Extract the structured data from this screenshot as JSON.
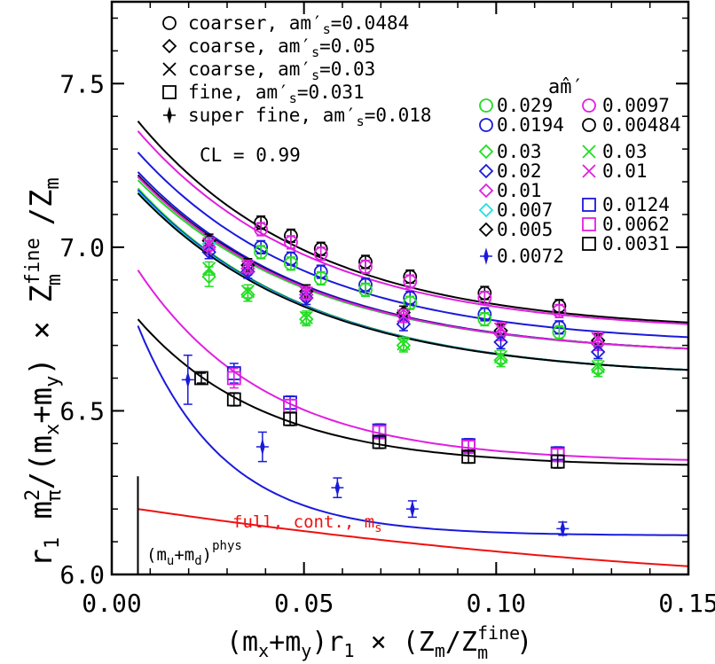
{
  "chart_data": {
    "type": "scatter",
    "x_axis": {
      "label_main": "(m",
      "label_x_sub": "x",
      "label_plus": "+m",
      "label_y_sub": "y",
      "label_r1": ")r",
      "label_r1_sub": "1",
      "label_times": " × (Z",
      "label_m_sub": "m",
      "label_slash": "/Z",
      "label_m_sub2": "m",
      "label_fine_sup": "fine",
      "label_close": ")",
      "range": [
        0.0,
        0.15
      ],
      "ticks": [
        0.0,
        0.05,
        0.1,
        0.15
      ],
      "tick_labels": [
        "0.00",
        "0.05",
        "0.10",
        "0.15"
      ]
    },
    "y_axis": {
      "label_r1": "r",
      "label_r1_sub": "1",
      "label_m": " m",
      "label_pi_sup": "2",
      "label_pi_sub": "π",
      "label_div": "/(m",
      "label_x_sub": "x",
      "label_plus": "+m",
      "label_y_sub": "y",
      "label_times": ") × Z",
      "label_fine_sup": "fine",
      "label_m_sub": "m",
      "label_slash": " /Z",
      "label_m_sub2": "m",
      "range": [
        6.0,
        7.75
      ],
      "ticks": [
        6.0,
        6.5,
        7.0,
        7.5
      ],
      "tick_labels": [
        "6.0",
        "6.5",
        "7.0",
        "7.5"
      ]
    },
    "legend_ensembles": [
      {
        "marker": "circle",
        "text": "coarser, am′",
        "sub": "s",
        "value": "=0.0484"
      },
      {
        "marker": "diamond",
        "text": "coarse, am′",
        "sub": "s",
        "value": "=0.05"
      },
      {
        "marker": "cross",
        "text": "coarse, am′",
        "sub": "s",
        "value": "=0.03"
      },
      {
        "marker": "square",
        "text": "fine, am′",
        "sub": "s",
        "value": "=0.031"
      },
      {
        "marker": "fancyplus",
        "text": "super fine, am′",
        "sub": "s",
        "value": "=0.018"
      }
    ],
    "cl_label": "CL = 0.99",
    "legend_mass_title": "a",
    "legend_mass_title_m": "m̂′",
    "legend_masses_left": [
      {
        "value": "0.029",
        "marker": "circle",
        "color": "#22dd22"
      },
      {
        "value": "0.0194",
        "marker": "circle",
        "color": "#1a1adb"
      },
      {
        "value": "0.03",
        "marker": "diamond",
        "color": "#22dd22"
      },
      {
        "value": "0.02",
        "marker": "diamond",
        "color": "#1a1adb"
      },
      {
        "value": "0.01",
        "marker": "diamond",
        "color": "#e020e0"
      },
      {
        "value": "0.007",
        "marker": "diamond",
        "color": "#22e0e0"
      },
      {
        "value": "0.005",
        "marker": "diamond",
        "color": "#000000"
      },
      {
        "value": "0.0072",
        "marker": "fancyplus",
        "color": "#1a1adb"
      }
    ],
    "legend_masses_right": [
      {
        "value": "0.0097",
        "marker": "circle",
        "color": "#e020e0"
      },
      {
        "value": "0.00484",
        "marker": "circle",
        "color": "#000000"
      },
      {
        "value": "0.03",
        "marker": "cross",
        "color": "#22dd22"
      },
      {
        "value": "0.01",
        "marker": "cross",
        "color": "#e020e0"
      },
      {
        "value": "0.0124",
        "marker": "square",
        "color": "#1a1adb"
      },
      {
        "value": "0.0062",
        "marker": "square",
        "color": "#e020e0"
      },
      {
        "value": "0.0031",
        "marker": "square",
        "color": "#000000"
      }
    ],
    "annotations": {
      "continuum_label": "full, cont., m",
      "continuum_sub": "s",
      "phys_label": "(m",
      "phys_u_sub": "u",
      "phys_plus": "+m",
      "phys_d_sub": "d",
      "phys_close": ")",
      "phys_sup": "phys",
      "phys_x": 0.0068,
      "continuum_color": "#ee1111"
    },
    "curves": [
      {
        "color": "#000000",
        "x0": 0.0068,
        "y0": 7.385,
        "x1": 0.15,
        "y1": 6.77,
        "k": 22
      },
      {
        "color": "#e020e0",
        "x0": 0.0068,
        "y0": 7.355,
        "x1": 0.15,
        "y1": 6.765,
        "k": 22
      },
      {
        "color": "#1a1adb",
        "x0": 0.0068,
        "y0": 7.29,
        "x1": 0.15,
        "y1": 6.725,
        "k": 22
      },
      {
        "color": "#1a1adb",
        "x0": 0.0068,
        "y0": 7.23,
        "x1": 0.15,
        "y1": 6.69,
        "k": 22
      },
      {
        "color": "#000000",
        "x0": 0.0068,
        "y0": 7.22,
        "x1": 0.15,
        "y1": 6.69,
        "k": 22
      },
      {
        "color": "#22dd22",
        "x0": 0.0068,
        "y0": 7.205,
        "x1": 0.15,
        "y1": 6.69,
        "k": 22
      },
      {
        "color": "#e020e0",
        "x0": 0.0068,
        "y0": 7.215,
        "x1": 0.15,
        "y1": 6.69,
        "k": 22
      },
      {
        "color": "#22dd22",
        "x0": 0.0068,
        "y0": 7.18,
        "x1": 0.15,
        "y1": 6.625,
        "k": 22
      },
      {
        "color": "#1a1adb",
        "x0": 0.0068,
        "y0": 7.175,
        "x1": 0.15,
        "y1": 6.625,
        "k": 22
      },
      {
        "color": "#22e0e0",
        "x0": 0.0068,
        "y0": 7.17,
        "x1": 0.15,
        "y1": 6.625,
        "k": 22
      },
      {
        "color": "#000000",
        "x0": 0.0068,
        "y0": 7.165,
        "x1": 0.15,
        "y1": 6.625,
        "k": 22
      },
      {
        "color": "#e020e0",
        "x0": 0.0068,
        "y0": 6.93,
        "x1": 0.15,
        "y1": 6.35,
        "k": 30
      },
      {
        "color": "#000000",
        "x0": 0.0068,
        "y0": 6.78,
        "x1": 0.15,
        "y1": 6.335,
        "k": 30
      },
      {
        "color": "#1a1adb",
        "x0": 0.0068,
        "y0": 6.76,
        "x1": 0.15,
        "y1": 6.12,
        "k": 45
      },
      {
        "color": "#ee1111",
        "x0": 0.0068,
        "y0": 6.2,
        "x1": 0.15,
        "y1": 6.025,
        "k": 0
      }
    ],
    "points": [
      {
        "m": "circle",
        "c": "#000000",
        "x": 0.0388,
        "y": 7.075,
        "e": 0.02
      },
      {
        "m": "circle",
        "c": "#e020e0",
        "x": 0.0388,
        "y": 7.055,
        "e": 0.02
      },
      {
        "m": "circle",
        "c": "#1a1adb",
        "x": 0.0388,
        "y": 7.0,
        "e": 0.02
      },
      {
        "m": "circle",
        "c": "#22dd22",
        "x": 0.0388,
        "y": 6.985,
        "e": 0.02
      },
      {
        "m": "circle",
        "c": "#000000",
        "x": 0.0466,
        "y": 7.035,
        "e": 0.02
      },
      {
        "m": "circle",
        "c": "#e020e0",
        "x": 0.0466,
        "y": 7.015,
        "e": 0.02
      },
      {
        "m": "circle",
        "c": "#1a1adb",
        "x": 0.0466,
        "y": 6.965,
        "e": 0.02
      },
      {
        "m": "circle",
        "c": "#22dd22",
        "x": 0.0466,
        "y": 6.95,
        "e": 0.02
      },
      {
        "m": "circle",
        "c": "#000000",
        "x": 0.0544,
        "y": 6.995,
        "e": 0.02
      },
      {
        "m": "circle",
        "c": "#e020e0",
        "x": 0.0544,
        "y": 6.98,
        "e": 0.02
      },
      {
        "m": "circle",
        "c": "#1a1adb",
        "x": 0.0544,
        "y": 6.925,
        "e": 0.02
      },
      {
        "m": "circle",
        "c": "#22dd22",
        "x": 0.0544,
        "y": 6.905,
        "e": 0.02
      },
      {
        "m": "circle",
        "c": "#000000",
        "x": 0.066,
        "y": 6.955,
        "e": 0.02
      },
      {
        "m": "circle",
        "c": "#e020e0",
        "x": 0.066,
        "y": 6.94,
        "e": 0.02
      },
      {
        "m": "circle",
        "c": "#1a1adb",
        "x": 0.066,
        "y": 6.885,
        "e": 0.02
      },
      {
        "m": "circle",
        "c": "#22dd22",
        "x": 0.066,
        "y": 6.87,
        "e": 0.02
      },
      {
        "m": "circle",
        "c": "#000000",
        "x": 0.0776,
        "y": 6.91,
        "e": 0.02
      },
      {
        "m": "circle",
        "c": "#e020e0",
        "x": 0.0776,
        "y": 6.895,
        "e": 0.02
      },
      {
        "m": "circle",
        "c": "#1a1adb",
        "x": 0.0776,
        "y": 6.845,
        "e": 0.02
      },
      {
        "m": "circle",
        "c": "#22dd22",
        "x": 0.0776,
        "y": 6.83,
        "e": 0.02
      },
      {
        "m": "circle",
        "c": "#000000",
        "x": 0.097,
        "y": 6.86,
        "e": 0.02
      },
      {
        "m": "circle",
        "c": "#e020e0",
        "x": 0.097,
        "y": 6.845,
        "e": 0.02
      },
      {
        "m": "circle",
        "c": "#1a1adb",
        "x": 0.097,
        "y": 6.795,
        "e": 0.02
      },
      {
        "m": "circle",
        "c": "#22dd22",
        "x": 0.097,
        "y": 6.78,
        "e": 0.02
      },
      {
        "m": "circle",
        "c": "#000000",
        "x": 0.1164,
        "y": 6.82,
        "e": 0.02
      },
      {
        "m": "circle",
        "c": "#e020e0",
        "x": 0.1164,
        "y": 6.805,
        "e": 0.02
      },
      {
        "m": "circle",
        "c": "#1a1adb",
        "x": 0.1164,
        "y": 6.755,
        "e": 0.02
      },
      {
        "m": "circle",
        "c": "#22dd22",
        "x": 0.1164,
        "y": 6.74,
        "e": 0.02
      },
      {
        "m": "diamond",
        "c": "#000000",
        "x": 0.0253,
        "y": 7.02,
        "e": 0.02
      },
      {
        "m": "diamond",
        "c": "#22e0e0",
        "x": 0.0253,
        "y": 7.01,
        "e": 0.02
      },
      {
        "m": "diamond",
        "c": "#e020e0",
        "x": 0.0253,
        "y": 7.0,
        "e": 0.02
      },
      {
        "m": "diamond",
        "c": "#1a1adb",
        "x": 0.0253,
        "y": 6.985,
        "e": 0.02
      },
      {
        "m": "diamond",
        "c": "#22dd22",
        "x": 0.0253,
        "y": 6.91,
        "e": 0.03
      },
      {
        "m": "diamond",
        "c": "#000000",
        "x": 0.0354,
        "y": 6.945,
        "e": 0.02
      },
      {
        "m": "diamond",
        "c": "#e020e0",
        "x": 0.0354,
        "y": 6.935,
        "e": 0.02
      },
      {
        "m": "diamond",
        "c": "#1a1adb",
        "x": 0.0354,
        "y": 6.925,
        "e": 0.02
      },
      {
        "m": "diamond",
        "c": "#22dd22",
        "x": 0.0354,
        "y": 6.855,
        "e": 0.02
      },
      {
        "m": "diamond",
        "c": "#000000",
        "x": 0.0506,
        "y": 6.865,
        "e": 0.02
      },
      {
        "m": "diamond",
        "c": "#e020e0",
        "x": 0.0506,
        "y": 6.855,
        "e": 0.02
      },
      {
        "m": "diamond",
        "c": "#1a1adb",
        "x": 0.0506,
        "y": 6.845,
        "e": 0.02
      },
      {
        "m": "diamond",
        "c": "#22dd22",
        "x": 0.0506,
        "y": 6.78,
        "e": 0.02
      },
      {
        "m": "diamond",
        "c": "#000000",
        "x": 0.0759,
        "y": 6.8,
        "e": 0.02
      },
      {
        "m": "diamond",
        "c": "#e020e0",
        "x": 0.0759,
        "y": 6.79,
        "e": 0.02
      },
      {
        "m": "diamond",
        "c": "#1a1adb",
        "x": 0.0759,
        "y": 6.765,
        "e": 0.02
      },
      {
        "m": "diamond",
        "c": "#22dd22",
        "x": 0.0759,
        "y": 6.7,
        "e": 0.02
      },
      {
        "m": "diamond",
        "c": "#000000",
        "x": 0.1012,
        "y": 6.745,
        "e": 0.02
      },
      {
        "m": "diamond",
        "c": "#e020e0",
        "x": 0.1012,
        "y": 6.735,
        "e": 0.02
      },
      {
        "m": "diamond",
        "c": "#1a1adb",
        "x": 0.1012,
        "y": 6.71,
        "e": 0.02
      },
      {
        "m": "diamond",
        "c": "#22dd22",
        "x": 0.1012,
        "y": 6.655,
        "e": 0.02
      },
      {
        "m": "diamond",
        "c": "#000000",
        "x": 0.1265,
        "y": 6.715,
        "e": 0.02
      },
      {
        "m": "diamond",
        "c": "#e020e0",
        "x": 0.1265,
        "y": 6.705,
        "e": 0.02
      },
      {
        "m": "diamond",
        "c": "#1a1adb",
        "x": 0.1265,
        "y": 6.68,
        "e": 0.02
      },
      {
        "m": "diamond",
        "c": "#22dd22",
        "x": 0.1265,
        "y": 6.625,
        "e": 0.02
      },
      {
        "m": "cross",
        "c": "#e020e0",
        "x": 0.0253,
        "y": 7.01,
        "e": 0.02
      },
      {
        "m": "cross",
        "c": "#22dd22",
        "x": 0.0253,
        "y": 6.935,
        "e": 0.02
      },
      {
        "m": "cross",
        "c": "#e020e0",
        "x": 0.0354,
        "y": 6.94,
        "e": 0.02
      },
      {
        "m": "cross",
        "c": "#22dd22",
        "x": 0.0354,
        "y": 6.865,
        "e": 0.02
      },
      {
        "m": "cross",
        "c": "#e020e0",
        "x": 0.0506,
        "y": 6.86,
        "e": 0.02
      },
      {
        "m": "cross",
        "c": "#22dd22",
        "x": 0.0506,
        "y": 6.785,
        "e": 0.02
      },
      {
        "m": "cross",
        "c": "#e020e0",
        "x": 0.0759,
        "y": 6.79,
        "e": 0.02
      },
      {
        "m": "cross",
        "c": "#22dd22",
        "x": 0.0759,
        "y": 6.705,
        "e": 0.02
      },
      {
        "m": "cross",
        "c": "#e020e0",
        "x": 0.1012,
        "y": 6.75,
        "e": 0.02
      },
      {
        "m": "cross",
        "c": "#22dd22",
        "x": 0.1012,
        "y": 6.665,
        "e": 0.02
      },
      {
        "m": "cross",
        "c": "#e020e0",
        "x": 0.1265,
        "y": 6.72,
        "e": 0.02
      },
      {
        "m": "cross",
        "c": "#22dd22",
        "x": 0.1265,
        "y": 6.635,
        "e": 0.02
      },
      {
        "m": "square",
        "c": "#000000",
        "x": 0.0233,
        "y": 6.6,
        "e": 0.015
      },
      {
        "m": "square",
        "c": "#1a1adb",
        "x": 0.0318,
        "y": 6.615,
        "e": 0.03
      },
      {
        "m": "square",
        "c": "#e020e0",
        "x": 0.0318,
        "y": 6.6,
        "e": 0.03
      },
      {
        "m": "square",
        "c": "#000000",
        "x": 0.0318,
        "y": 6.535,
        "e": 0.02
      },
      {
        "m": "square",
        "c": "#1a1adb",
        "x": 0.0464,
        "y": 6.525,
        "e": 0.02
      },
      {
        "m": "square",
        "c": "#e020e0",
        "x": 0.0464,
        "y": 6.515,
        "e": 0.02
      },
      {
        "m": "square",
        "c": "#000000",
        "x": 0.0464,
        "y": 6.475,
        "e": 0.02
      },
      {
        "m": "square",
        "c": "#1a1adb",
        "x": 0.0696,
        "y": 6.44,
        "e": 0.02
      },
      {
        "m": "square",
        "c": "#e020e0",
        "x": 0.0696,
        "y": 6.435,
        "e": 0.02
      },
      {
        "m": "square",
        "c": "#000000",
        "x": 0.0696,
        "y": 6.405,
        "e": 0.02
      },
      {
        "m": "square",
        "c": "#1a1adb",
        "x": 0.0928,
        "y": 6.395,
        "e": 0.02
      },
      {
        "m": "square",
        "c": "#e020e0",
        "x": 0.0928,
        "y": 6.39,
        "e": 0.02
      },
      {
        "m": "square",
        "c": "#000000",
        "x": 0.0928,
        "y": 6.36,
        "e": 0.02
      },
      {
        "m": "square",
        "c": "#1a1adb",
        "x": 0.116,
        "y": 6.37,
        "e": 0.02
      },
      {
        "m": "square",
        "c": "#e020e0",
        "x": 0.116,
        "y": 6.365,
        "e": 0.02
      },
      {
        "m": "square",
        "c": "#000000",
        "x": 0.116,
        "y": 6.345,
        "e": 0.02
      },
      {
        "m": "fancyplus",
        "c": "#1a1adb",
        "x": 0.0198,
        "y": 6.595,
        "e": 0.075
      },
      {
        "m": "fancyplus",
        "c": "#1a1adb",
        "x": 0.0392,
        "y": 6.39,
        "e": 0.045
      },
      {
        "m": "fancyplus",
        "c": "#1a1adb",
        "x": 0.0587,
        "y": 6.265,
        "e": 0.03
      },
      {
        "m": "fancyplus",
        "c": "#1a1adb",
        "x": 0.0782,
        "y": 6.2,
        "e": 0.025
      },
      {
        "m": "fancyplus",
        "c": "#1a1adb",
        "x": 0.1173,
        "y": 6.14,
        "e": 0.02
      }
    ]
  }
}
